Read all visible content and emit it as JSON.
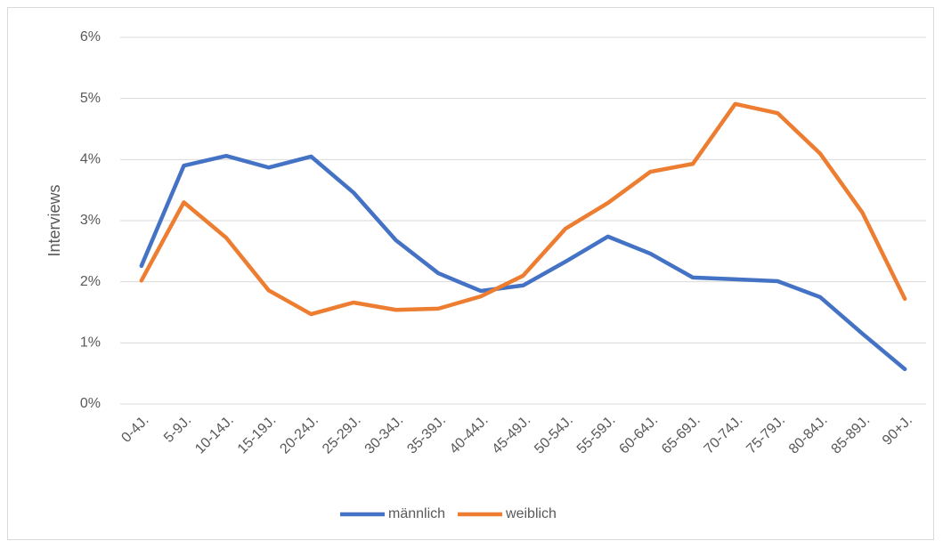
{
  "chart_data": {
    "type": "line",
    "y_label": "Interviews",
    "categories": [
      "0-4J.",
      "5-9J.",
      "10-14J.",
      "15-19J.",
      "20-24J.",
      "25-29J.",
      "30-34J.",
      "35-39J.",
      "40-44J.",
      "45-49J.",
      "50-54J.",
      "55-59J.",
      "60-64J.",
      "65-69J.",
      "70-74J.",
      "75-79J.",
      "80-84J.",
      "85-89J.",
      "90+J."
    ],
    "series": [
      {
        "name": "männlich",
        "color": "#4472c4",
        "values": [
          2.26,
          3.9,
          4.06,
          3.87,
          4.05,
          3.46,
          2.68,
          2.14,
          1.85,
          1.94,
          2.33,
          2.74,
          2.46,
          2.07,
          2.04,
          2.01,
          1.75,
          1.15,
          0.57
        ]
      },
      {
        "name": "weiblich",
        "color": "#ed7d31",
        "values": [
          2.02,
          3.3,
          2.72,
          1.86,
          1.47,
          1.66,
          1.54,
          1.56,
          1.76,
          2.1,
          2.87,
          3.29,
          3.8,
          3.93,
          4.91,
          4.76,
          4.1,
          3.13,
          1.72
        ]
      }
    ],
    "ylim": [
      0,
      6
    ],
    "yticks": [
      {
        "value": 0,
        "label": "0%"
      },
      {
        "value": 1,
        "label": "1%"
      },
      {
        "value": 2,
        "label": "2%"
      },
      {
        "value": 3,
        "label": "3%"
      },
      {
        "value": 4,
        "label": "4%"
      },
      {
        "value": 5,
        "label": "5%"
      },
      {
        "value": 6,
        "label": "6%"
      }
    ],
    "grid": true,
    "legend": "bottom"
  }
}
